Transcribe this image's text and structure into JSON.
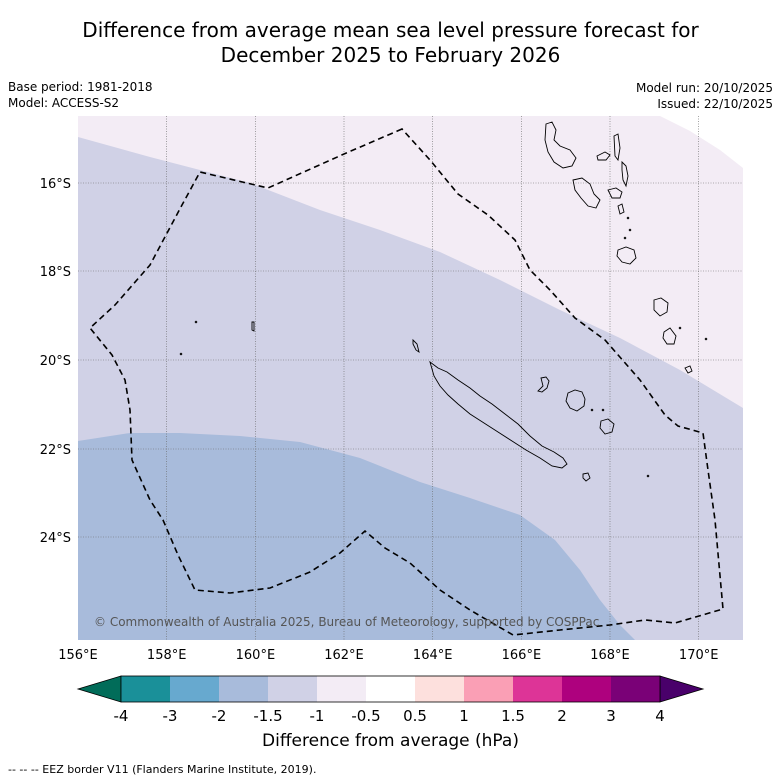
{
  "title": {
    "line1": "Difference from average mean sea level pressure forecast for",
    "line2": "December 2025 to February 2026"
  },
  "meta": {
    "base_period": "Base period: 1981-2018",
    "model": "Model: ACCESS-S2",
    "model_run": "Model run: 20/10/2025",
    "issued": "Issued: 22/10/2025"
  },
  "map": {
    "copyright": "© Commonwealth of Australia 2025, Bureau of Meteorology, supported by COSPPac",
    "lon_labels": [
      "156°E",
      "158°E",
      "160°E",
      "162°E",
      "164°E",
      "166°E",
      "168°E",
      "170°E"
    ],
    "lat_labels": [
      "16°S",
      "18°S",
      "20°S",
      "22°S",
      "24°S"
    ],
    "zone_colors": {
      "-2": "#a8bbdb",
      "-1.5": "#d0d1e6",
      "-1": "#f3ecf5"
    }
  },
  "colorbar": {
    "labels": [
      "-4",
      "-3",
      "-2",
      "-1.5",
      "-1",
      "-0.5",
      "0.5",
      "1",
      "1.5",
      "2",
      "3",
      "4"
    ],
    "colors": [
      "#1a9099",
      "#67a9cf",
      "#a8bbdb",
      "#d0d1e6",
      "#f3ecf5",
      "#ffffff",
      "#fde0dd",
      "#fa9fb5",
      "#dd3497",
      "#ae017e",
      "#7a0177"
    ],
    "low_color": "#016c59",
    "high_color": "#49006a",
    "title": "Difference from average (hPa)"
  },
  "footnote": "--  --  -- EEZ border V11 (Flanders Marine Institute, 2019)."
}
